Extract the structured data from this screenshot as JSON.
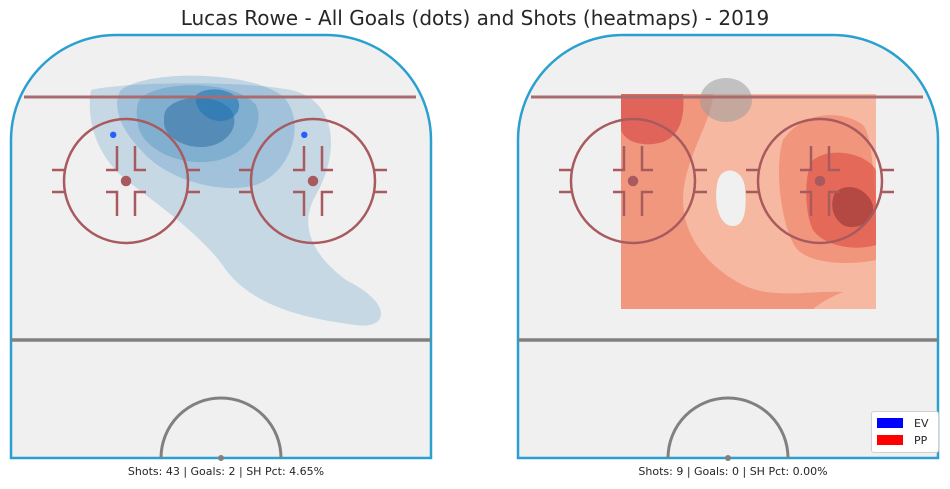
{
  "title": "Lucas Rowe - All Goals (dots) and Shots (heatmaps) - 2019",
  "colors": {
    "rink_border": "#2aa0d0",
    "goal_line": "#a96b6f",
    "circles": "#a85a5e",
    "center_line": "#808080",
    "ice": "#f0f0f0",
    "ev": "#0000ff",
    "pp": "#ff0000"
  },
  "legend": [
    {
      "label": "EV",
      "color": "#0000ff"
    },
    {
      "label": "PP",
      "color": "#ff0000"
    }
  ],
  "chart_data": [
    {
      "type": "heatmap",
      "strength": "EV",
      "caption": "Shots: 43 | Goals: 2 | SH Pct: 4.65%",
      "shots": 43,
      "goals": 2,
      "sh_pct": 4.65,
      "goal_dots": [
        {
          "x": -22,
          "y": 80
        },
        {
          "x": 17,
          "y": 80
        }
      ]
    },
    {
      "type": "heatmap",
      "strength": "PP",
      "caption": "Shots: 9 | Goals: 0 | SH Pct: 0.00%",
      "shots": 9,
      "goals": 0,
      "sh_pct": 0.0,
      "goal_dots": []
    }
  ]
}
